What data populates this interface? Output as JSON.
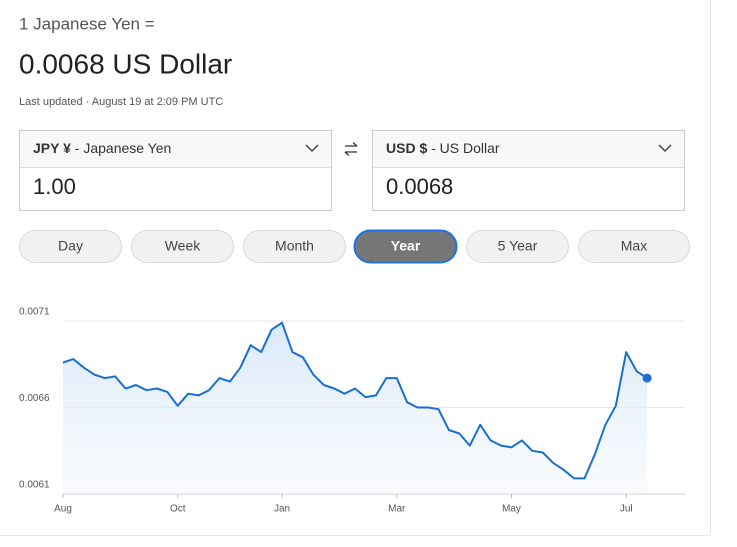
{
  "header": {
    "rate_label": "1 Japanese Yen =",
    "rate_value": "0.0068 US Dollar",
    "last_updated": "Last updated · August 19 at 2:09 PM UTC"
  },
  "converter": {
    "from": {
      "code": "JPY ¥",
      "name": " - Japanese Yen",
      "amount": "1.00"
    },
    "to": {
      "code": "USD $",
      "name": " - US Dollar",
      "amount": "0.0068"
    }
  },
  "range_buttons": {
    "labels": [
      "Day",
      "Week",
      "Month",
      "Year",
      "5 Year",
      "Max"
    ],
    "selected": 3
  },
  "chart_data": {
    "type": "line",
    "categories": [
      "Aug",
      null,
      null,
      null,
      null,
      null,
      null,
      null,
      null,
      null,
      null,
      "Oct",
      null,
      null,
      null,
      null,
      null,
      null,
      null,
      null,
      null,
      "Jan",
      null,
      null,
      null,
      null,
      null,
      null,
      null,
      null,
      null,
      null,
      "Mar",
      null,
      null,
      null,
      null,
      null,
      null,
      null,
      null,
      null,
      null,
      "May",
      null,
      null,
      null,
      null,
      null,
      null,
      null,
      null,
      null,
      null,
      "Jul",
      null,
      null
    ],
    "values": [
      0.00686,
      0.00688,
      0.00683,
      0.00679,
      0.00677,
      0.00678,
      0.00671,
      0.00673,
      0.0067,
      0.00671,
      0.00669,
      0.00661,
      0.00668,
      0.00667,
      0.0067,
      0.00677,
      0.00675,
      0.00683,
      0.00696,
      0.00692,
      0.00705,
      0.00709,
      0.00692,
      0.00689,
      0.00679,
      0.00673,
      0.00671,
      0.00668,
      0.00671,
      0.00666,
      0.00667,
      0.00677,
      0.00677,
      0.00663,
      0.0066,
      0.0066,
      0.00659,
      0.00647,
      0.00645,
      0.00638,
      0.0065,
      0.00641,
      0.00638,
      0.00637,
      0.00641,
      0.00635,
      0.00634,
      0.00628,
      0.00624,
      0.00619,
      0.00619,
      0.00633,
      0.0065,
      0.00661,
      0.00692,
      0.00681,
      0.00677
    ],
    "color": "#1a6fd0",
    "ylim": [
      0.0061,
      0.0071
    ],
    "yticks": [
      0.0061,
      0.0066,
      0.0071
    ],
    "grid": true
  }
}
